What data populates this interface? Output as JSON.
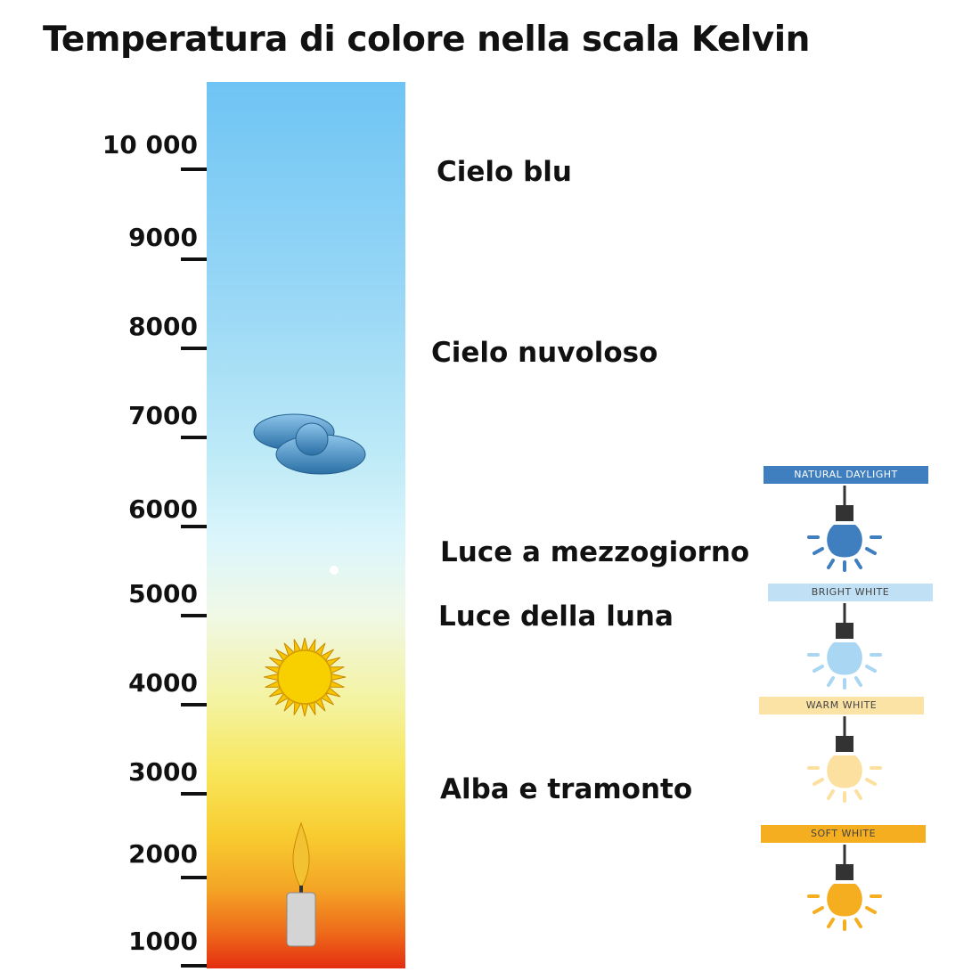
{
  "title": "Temperatura di colore nella scala Kelvin",
  "scale": {
    "unit": "K",
    "ticks": [
      "10 000",
      "9000",
      "8000",
      "7000",
      "6000",
      "5000",
      "4000",
      "3000",
      "2000",
      "1000"
    ]
  },
  "descriptions": [
    "Cielo blu",
    "Cielo nuvoloso",
    "Luce a mezzogiorno",
    "Luce della luna",
    "Alba e tramonto"
  ],
  "icons": [
    "cloud-icon",
    "sun-icon",
    "candle-icon",
    "moon-dot-icon"
  ],
  "bulbs": [
    {
      "label": "NATURAL DAYLIGHT",
      "banner_color": "#3f7fc0",
      "bulb_color": "#3f7fc0",
      "text_color": "#ffffff"
    },
    {
      "label": "BRIGHT WHITE",
      "banner_color": "#bfe0f5",
      "bulb_color": "#a9d6f3",
      "text_color": "#444444"
    },
    {
      "label": "WARM WHITE",
      "banner_color": "#fbe3a6",
      "bulb_color": "#fbe0a0",
      "text_color": "#444444"
    },
    {
      "label": "SOFT WHITE",
      "banner_color": "#f5ae20",
      "bulb_color": "#f5ae20",
      "text_color": "#444444"
    }
  ]
}
